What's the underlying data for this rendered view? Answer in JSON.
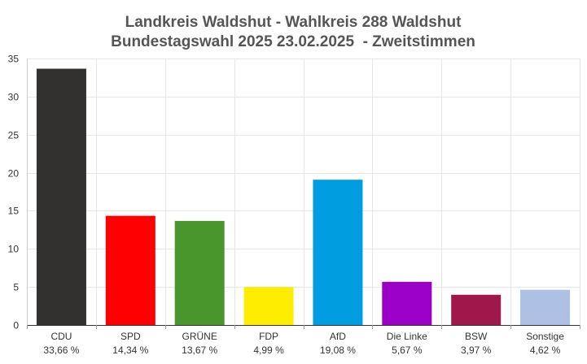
{
  "chart_data": {
    "type": "bar",
    "title": "Landkreis Waldshut - Wahlkreis 288 Waldshut",
    "subtitle": "Bundestagswahl 2025 23.02.2025  - Zweitstimmen",
    "categories": [
      "CDU",
      "SPD",
      "GRÜNE",
      "FDP",
      "AfD",
      "Die Linke",
      "BSW",
      "Sonstige"
    ],
    "value_labels": [
      "33,66 %",
      "14,34 %",
      "13,67 %",
      "4,99 %",
      "19,08 %",
      "5,67 %",
      "3,97 %",
      "4,62 %"
    ],
    "values": [
      33.66,
      14.34,
      13.67,
      4.99,
      19.08,
      5.67,
      3.97,
      4.62
    ],
    "colors": [
      "#333130",
      "#ff0000",
      "#48962c",
      "#ffed00",
      "#009ee0",
      "#9b00c8",
      "#a0184a",
      "#aec0e4"
    ],
    "ylim": [
      0,
      35
    ],
    "yticks": [
      "0",
      "5",
      "10",
      "15",
      "20",
      "25",
      "30",
      "35"
    ],
    "ytick_values": [
      0,
      5,
      10,
      15,
      20,
      25,
      30,
      35
    ],
    "grid": true,
    "xlabel": "",
    "ylabel": ""
  }
}
